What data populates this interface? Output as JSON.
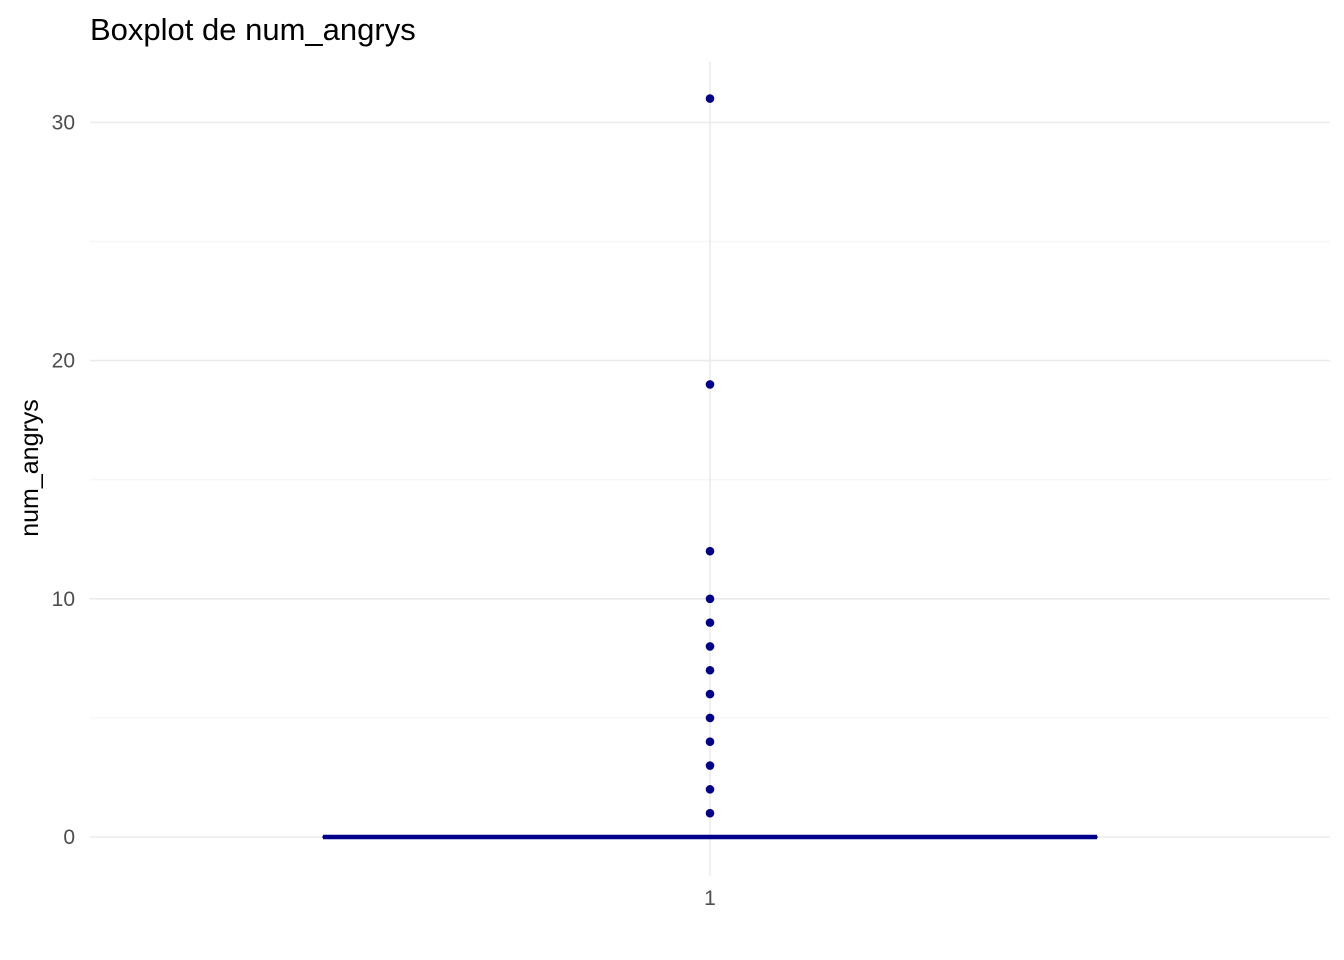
{
  "chart_data": {
    "type": "boxplot",
    "title": "Boxplot de num_angrys",
    "xlabel": "",
    "ylabel": "num_angrys",
    "categories": [
      "1"
    ],
    "y_ticks": [
      0,
      10,
      20,
      30
    ],
    "ylim": [
      -1.2,
      32.5
    ],
    "grid": true,
    "legend": "none",
    "box": {
      "category": "1",
      "min": 0,
      "q1": 0,
      "median": 0,
      "q3": 0,
      "max": 0
    },
    "outliers": [
      1,
      2,
      3,
      4,
      5,
      6,
      7,
      8,
      9,
      10,
      12,
      19,
      31
    ],
    "colors": {
      "box": "#00008B",
      "outlier": "#00008B",
      "grid_major": "#EBEBEB",
      "grid_minor": "#F5F5F5"
    }
  }
}
